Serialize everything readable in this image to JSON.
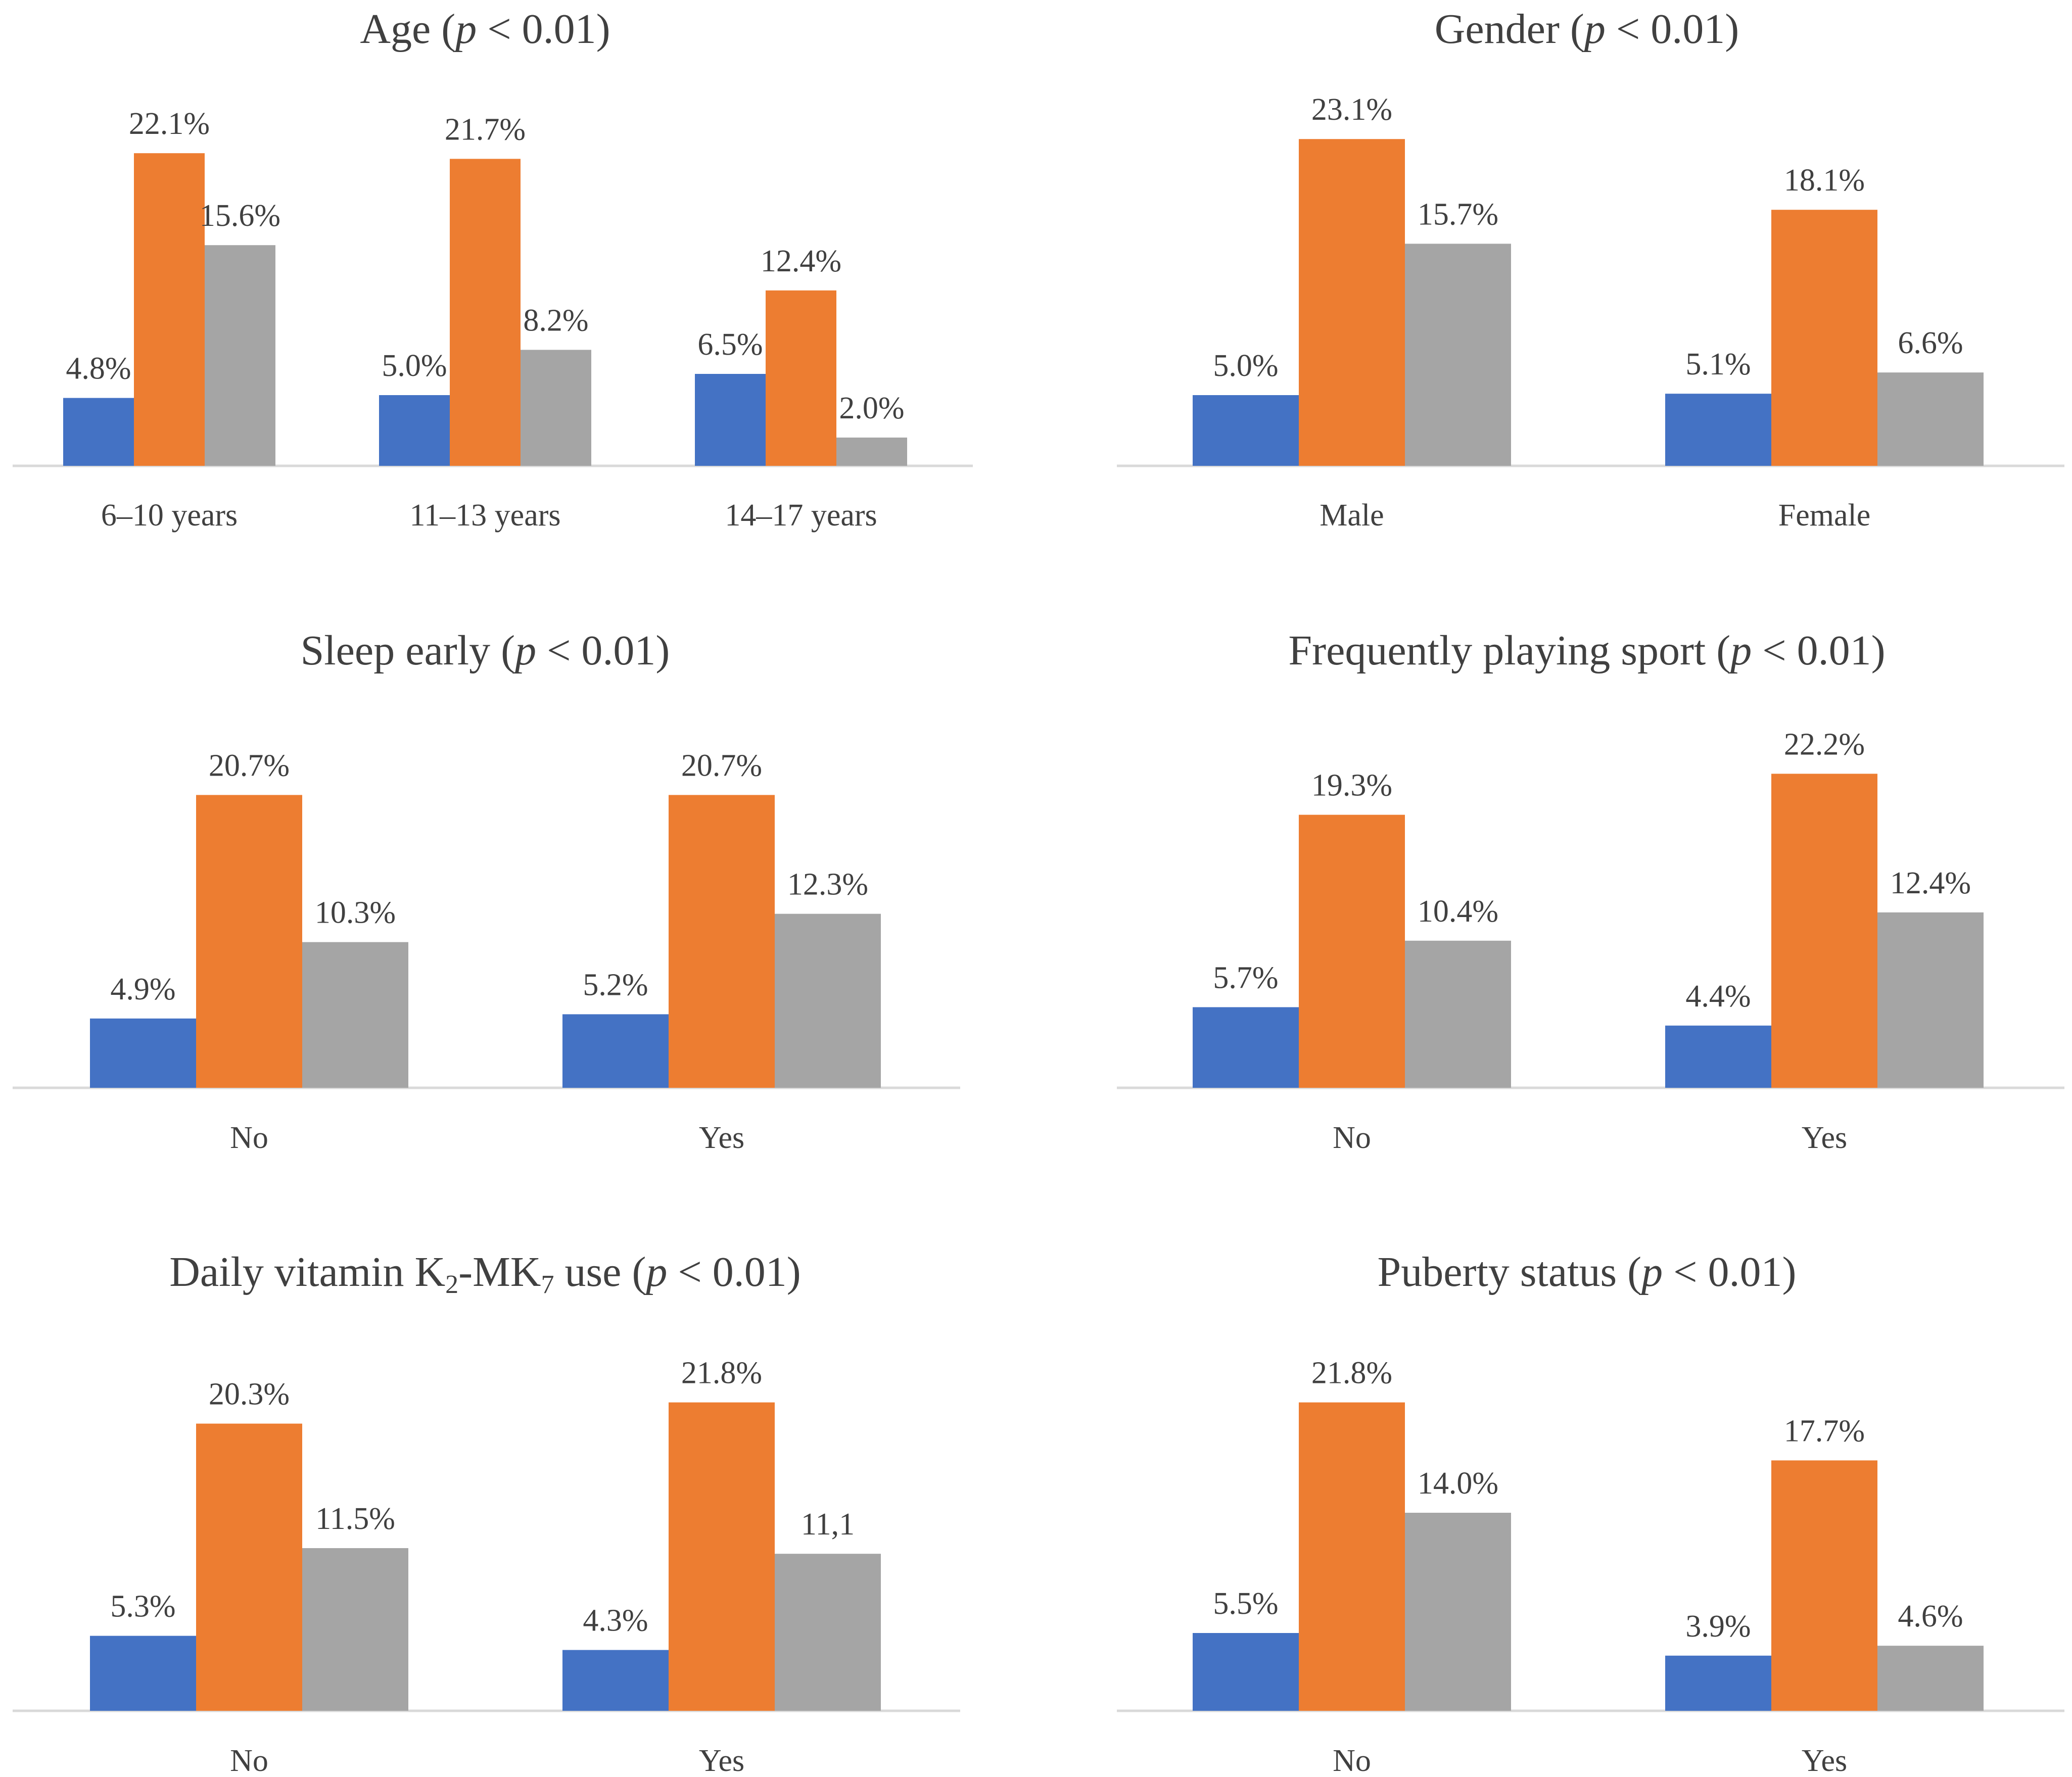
{
  "colors": {
    "series1": "#4472C4",
    "series2": "#ED7D31",
    "series3": "#A5A5A5",
    "axis": "#D9D9D9",
    "text": "#404040"
  },
  "chart_data": [
    {
      "type": "bar",
      "title": {
        "main": "Age (",
        "p": "p",
        "rest": " < 0.01)"
      },
      "categories": [
        "6–10 years",
        "11–13 years",
        "14–17 years"
      ],
      "series": [
        {
          "values": [
            4.8,
            5.0,
            6.5
          ],
          "labels": [
            "4.8%",
            "5.0%",
            "6.5%"
          ]
        },
        {
          "values": [
            22.1,
            21.7,
            12.4
          ],
          "labels": [
            "22.1%",
            "21.7%",
            "12.4%"
          ]
        },
        {
          "values": [
            15.6,
            8.2,
            2.0
          ],
          "labels": [
            "15.6%",
            "8.2%",
            "2.0%"
          ]
        }
      ],
      "ylim": [
        0,
        25
      ],
      "legend": "none",
      "grid": false
    },
    {
      "type": "bar",
      "title": {
        "main": "Gender (",
        "p": "p",
        "rest": " < 0.01)"
      },
      "categories": [
        "Male",
        "Female"
      ],
      "series": [
        {
          "values": [
            5.0,
            5.1
          ],
          "labels": [
            "5.0%",
            "5.1%"
          ]
        },
        {
          "values": [
            23.1,
            18.1
          ],
          "labels": [
            "23.1%",
            "18.1%"
          ]
        },
        {
          "values": [
            15.7,
            6.6
          ],
          "labels": [
            "15.7%",
            "6.6%"
          ]
        }
      ],
      "ylim": [
        0,
        25
      ],
      "legend": "none",
      "grid": false
    },
    {
      "type": "bar",
      "title": {
        "main": "Sleep early (",
        "p": "p",
        "rest": " < 0.01)"
      },
      "categories": [
        "No",
        "Yes"
      ],
      "series": [
        {
          "values": [
            4.9,
            5.2
          ],
          "labels": [
            "4.9%",
            "5.2%"
          ]
        },
        {
          "values": [
            20.7,
            20.7
          ],
          "labels": [
            "20.7%",
            "20.7%"
          ]
        },
        {
          "values": [
            10.3,
            12.3
          ],
          "labels": [
            "10.3%",
            "12.3%"
          ]
        }
      ],
      "ylim": [
        0,
        25
      ],
      "legend": "none",
      "grid": false
    },
    {
      "type": "bar",
      "title": {
        "main": "Frequently playing sport (",
        "p": "p",
        "rest": " < 0.01)"
      },
      "categories": [
        "No",
        "Yes"
      ],
      "series": [
        {
          "values": [
            5.7,
            4.4
          ],
          "labels": [
            "5.7%",
            "4.4%"
          ]
        },
        {
          "values": [
            19.3,
            22.2
          ],
          "labels": [
            "19.3%",
            "22.2%"
          ]
        },
        {
          "values": [
            10.4,
            12.4
          ],
          "labels": [
            "10.4%",
            "12.4%"
          ]
        }
      ],
      "ylim": [
        0,
        25
      ],
      "legend": "none",
      "grid": false
    },
    {
      "type": "bar",
      "title": {
        "main": "Daily vitamin K",
        "sub1": "2",
        "mid": "-MK",
        "sub2": "7",
        "main2": " use (",
        "p": "p",
        "rest": " < 0.01)"
      },
      "categories": [
        "No",
        "Yes"
      ],
      "series": [
        {
          "values": [
            5.3,
            4.3
          ],
          "labels": [
            "5.3%",
            "4.3%"
          ]
        },
        {
          "values": [
            20.3,
            21.8
          ],
          "labels": [
            "20.3%",
            "21.8%"
          ]
        },
        {
          "values": [
            11.5,
            11.1
          ],
          "labels": [
            "11.5%",
            "11,1"
          ]
        }
      ],
      "ylim": [
        0,
        25
      ],
      "legend": "none",
      "grid": false
    },
    {
      "type": "bar",
      "title": {
        "main": "Puberty status (",
        "p": "p",
        "rest": " < 0.01)"
      },
      "categories": [
        "No",
        "Yes"
      ],
      "series": [
        {
          "values": [
            5.5,
            3.9
          ],
          "labels": [
            "5.5%",
            "3.9%"
          ]
        },
        {
          "values": [
            21.8,
            17.7
          ],
          "labels": [
            "21.8%",
            "17.7%"
          ]
        },
        {
          "values": [
            14.0,
            4.6
          ],
          "labels": [
            "14.0%",
            "4.6%"
          ]
        }
      ],
      "ylim": [
        0,
        25
      ],
      "legend": "none",
      "grid": false
    }
  ]
}
